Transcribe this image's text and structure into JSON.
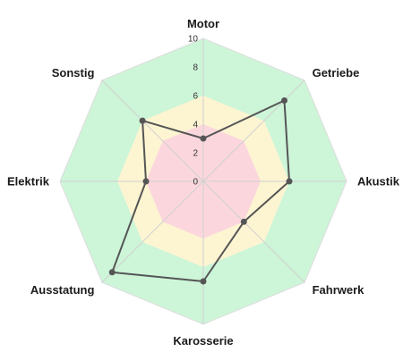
{
  "chart_data": {
    "type": "radar",
    "title": "",
    "axes": [
      "Motor",
      "Getriebe",
      "Akustik",
      "Fahrwerk",
      "Karosserie",
      "Ausstatung",
      "Elektrik",
      "Sonstig"
    ],
    "series": [
      {
        "values": [
          3,
          8,
          6,
          4,
          7,
          9,
          4,
          6
        ],
        "color": "#555555"
      }
    ],
    "rlim": [
      0,
      10
    ],
    "ticks": [
      "0",
      "2",
      "4",
      "6",
      "8",
      "10"
    ],
    "tick_values": [
      0,
      2,
      4,
      6,
      8,
      10
    ],
    "bands": [
      {
        "from": 0,
        "to": 4,
        "color": "#fbd7dd"
      },
      {
        "from": 4,
        "to": 6,
        "color": "#fdf5d2"
      },
      {
        "from": 6,
        "to": 10,
        "color": "#cdf5d8"
      }
    ],
    "grid": true,
    "legend": "none"
  }
}
